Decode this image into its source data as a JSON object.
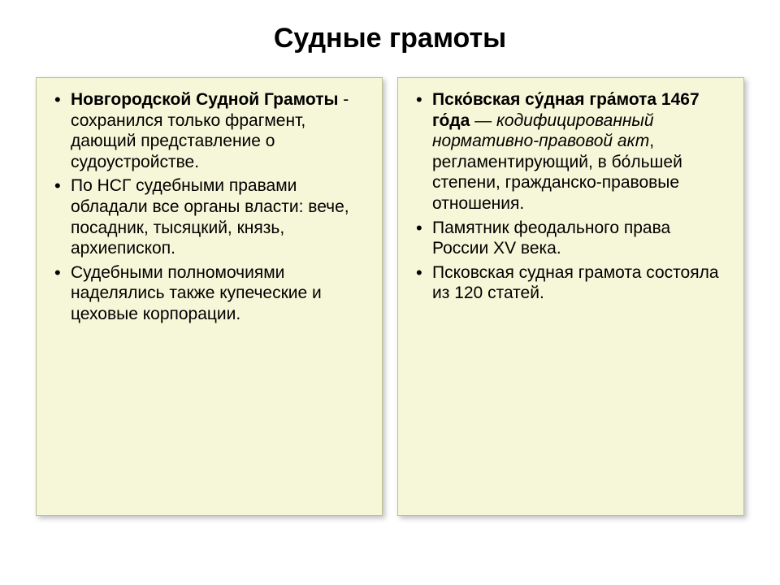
{
  "title": "Судные грамоты",
  "left": {
    "items": [
      {
        "bold": "Новгородской Судной Грамоты",
        "rest": " - сохранился только фрагмент, дающий представление о судоустройстве."
      },
      {
        "text": "По НСГ судебными правами обладали все органы власти: вече, посадник, тысяцкий, князь, архиепископ."
      },
      {
        "text": "Судебными полномочиями наделялись также купеческие и цеховые корпорации."
      }
    ]
  },
  "right": {
    "items": [
      {
        "bold": "Пско́вская су́дная гра́мота 1467 го́да",
        "dash": " — ",
        "italic": "кодифицированный нормативно-правовой акт",
        "rest": ", регламентирующий, в бо́льшей степени, гражданско-правовые отношения."
      },
      {
        "text": "Памятник феодального права России XV века."
      },
      {
        "text": "Псковская судная грамота состояла из 120 статей."
      }
    ]
  },
  "colors": {
    "panel_bg": "#f6f6d8",
    "panel_border": "#c0c090",
    "page_bg": "#ffffff",
    "text": "#000000"
  }
}
